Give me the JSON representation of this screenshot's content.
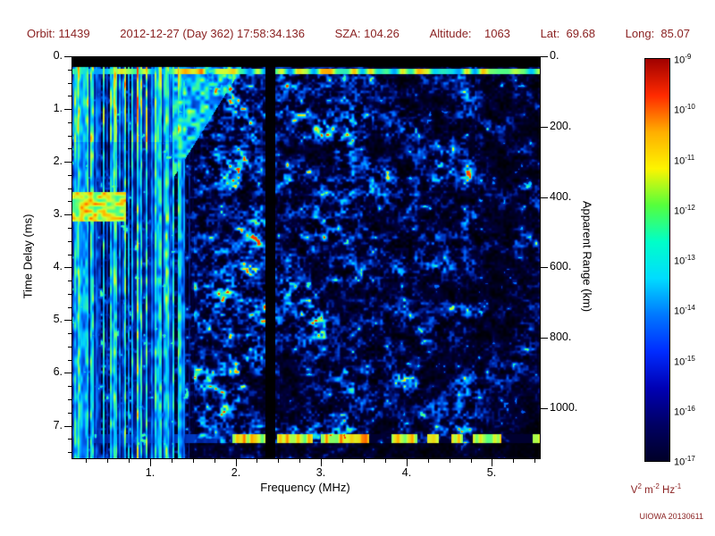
{
  "page": {
    "background": "#ffffff"
  },
  "header": {
    "color": "#8b2222",
    "segments": [
      "Orbit: 11439",
      "2012-12-27 (Day 362) 17:58:34.136",
      "SZA: 104.26",
      "Altitude:    1063",
      "Lat:  69.68",
      "Long:  85.07"
    ]
  },
  "chart_data": {
    "type": "heatmap",
    "description": "Radar sounder ionogram: received spectral density vs frequency and time delay; strong low-frequency vertical interference stripes below 1.35 MHz, ionospheric echo trace near 1.3-2 MHz at small delays, narrow interference gap near 2.4 MHz, bright dashed surface-echo band near 7.2 ms, speckled blue noise elsewhere on black background",
    "xlabel": "Frequency (MHz)",
    "ylabel_left": "Time Delay (ms)",
    "ylabel_right": "Apparent Range (km)",
    "x_range_mhz": [
      0.08,
      5.55
    ],
    "y_range_ms": [
      0.0,
      7.6
    ],
    "x_tick_values_mhz": [
      1,
      2,
      3,
      4,
      5
    ],
    "x_tick_labels": [
      "1.",
      "2.",
      "3.",
      "4.",
      "5."
    ],
    "y_tick_values_ms": [
      0,
      1,
      2,
      3,
      4,
      5,
      6,
      7
    ],
    "y_tick_labels": [
      "0.",
      "1.",
      "2.",
      "3.",
      "4.",
      "5.",
      "6.",
      "7."
    ],
    "right_tick_values_km": [
      0,
      200,
      400,
      600,
      800,
      1000
    ],
    "right_tick_labels": [
      "0.",
      "200.",
      "400.",
      "600.",
      "800.",
      "1000."
    ],
    "km_per_ms": 150,
    "colorbar": {
      "scale": "log",
      "tick_exponents": [
        "-9",
        "-10",
        "-11",
        "-12",
        "-13",
        "-14",
        "-15",
        "-16",
        "-17"
      ],
      "unit_parts": [
        {
          "base": "V",
          "exp": "2"
        },
        {
          "base": "m",
          "exp": "-2"
        },
        {
          "base": "Hz",
          "exp": "-1"
        }
      ],
      "gradient": [
        "#a00000",
        "#ff2a00",
        "#ffae00",
        "#fdf400",
        "#55ff3c",
        "#00ffc8",
        "#00dcff",
        "#0078ff",
        "#002cff",
        "#0000b4",
        "#000064",
        "#000028"
      ]
    },
    "features": {
      "instrument_line_delay_ms": 0.26,
      "top_blank_band_ms": 0.18,
      "low_freq_stripe_cutoff_mhz": 1.35,
      "ionosphere_trace_start_mhz": 1.25,
      "ionosphere_trace_end_mhz": 2.05,
      "interference_gap_mhz": [
        2.33,
        2.45
      ],
      "surface_echo_delay_ms": 7.22,
      "noise_seed": 12345
    }
  },
  "footer": {
    "watermark": "UIOWA 20130611",
    "color": "#8b2222"
  }
}
